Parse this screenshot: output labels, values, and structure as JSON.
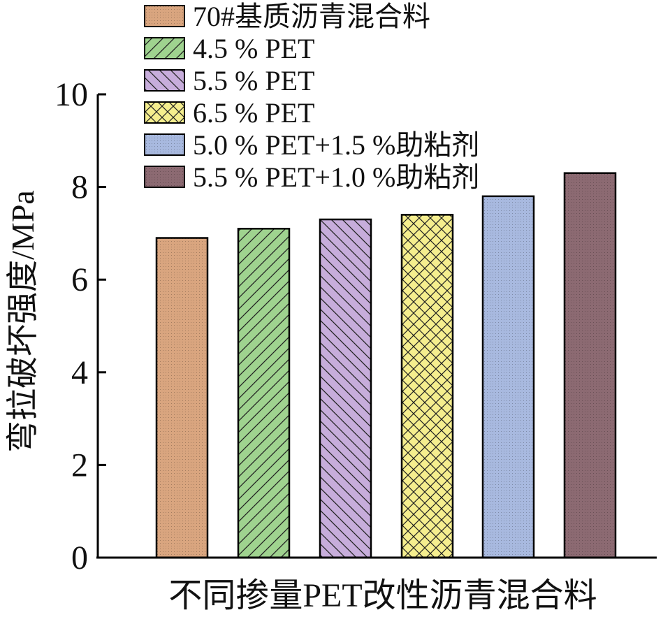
{
  "chart_data": {
    "type": "bar",
    "xlabel": "不同掺量PET改性沥青混合料",
    "ylabel": "弯拉破坏强度/MPa",
    "ylim": [
      0,
      10
    ],
    "yticks": [
      "0",
      "2",
      "4",
      "6",
      "8",
      "10"
    ],
    "legend_position": "top-left",
    "series": [
      {
        "name": "70#基质沥青混合料",
        "value": 6.9,
        "color": "#d9a57f",
        "pattern": "dots"
      },
      {
        "name": "4.5 % PET",
        "value": 7.1,
        "color": "#9fd38f",
        "pattern": "diag-up"
      },
      {
        "name": "5.5 % PET",
        "value": 7.3,
        "color": "#c7addb",
        "pattern": "diag-down"
      },
      {
        "name": "6.5 % PET",
        "value": 7.4,
        "color": "#f5ee8e",
        "pattern": "crosshatch"
      },
      {
        "name": "5.0 % PET+1.5 %助粘剂",
        "value": 7.8,
        "color": "#a8b9df",
        "pattern": "dots"
      },
      {
        "name": "5.5 % PET+1.0 %助粘剂",
        "value": 8.3,
        "color": "#8c6a72",
        "pattern": "dots"
      }
    ]
  }
}
